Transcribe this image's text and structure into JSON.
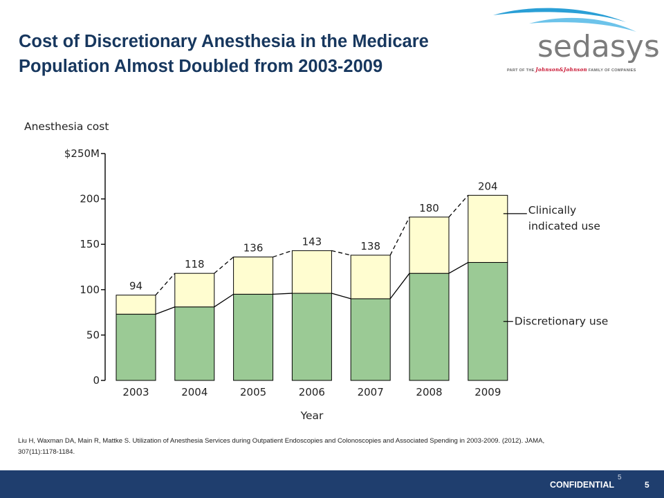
{
  "slide": {
    "title_line1": "Cost of Discretionary Anesthesia in the Medicare",
    "title_line2": "Population Almost Doubled from 2003-2009",
    "citation_line1": "Liu H, Waxman DA, Main R, Mattke S. Utilization of Anesthesia Services during Outpatient Endoscopies and Colonoscopies and Associated Spending in 2003-2009. (2012). JAMA,",
    "citation_line2": "307(11):1178-1184.",
    "footer_label": "CONFIDENTIAL",
    "page_number": "5",
    "page_number_small": "5"
  },
  "logo": {
    "word": "sedasys",
    "reg": "®",
    "tag_prefix": "PART OF THE",
    "tag_brand": "Johnson&Johnson",
    "tag_suffix": "FAMILY OF COMPANIES",
    "color_wave": "#2a9fd6",
    "color_text": "#7c7c7c"
  },
  "chart_data": {
    "type": "bar",
    "stacked": true,
    "title": "Anesthesia cost",
    "xlabel": "Year",
    "ylabel": "",
    "categories": [
      "2003",
      "2004",
      "2005",
      "2006",
      "2007",
      "2008",
      "2009"
    ],
    "series": [
      {
        "name": "Discretionary use",
        "values": [
          73,
          81,
          95,
          96,
          90,
          118,
          130
        ],
        "color": "#9bca95"
      },
      {
        "name": "Clinically indicated use",
        "values": [
          21,
          37,
          41,
          47,
          48,
          62,
          74
        ],
        "color": "#fffdd0"
      }
    ],
    "totals": [
      94,
      118,
      136,
      143,
      138,
      180,
      204
    ],
    "ylim": [
      0,
      250
    ],
    "yticks": [
      0,
      50,
      100,
      150,
      200,
      250
    ],
    "ytick_labels": [
      "0",
      "50",
      "100",
      "150",
      "200",
      "$250M"
    ],
    "legend_placement": "right",
    "grid": false
  }
}
